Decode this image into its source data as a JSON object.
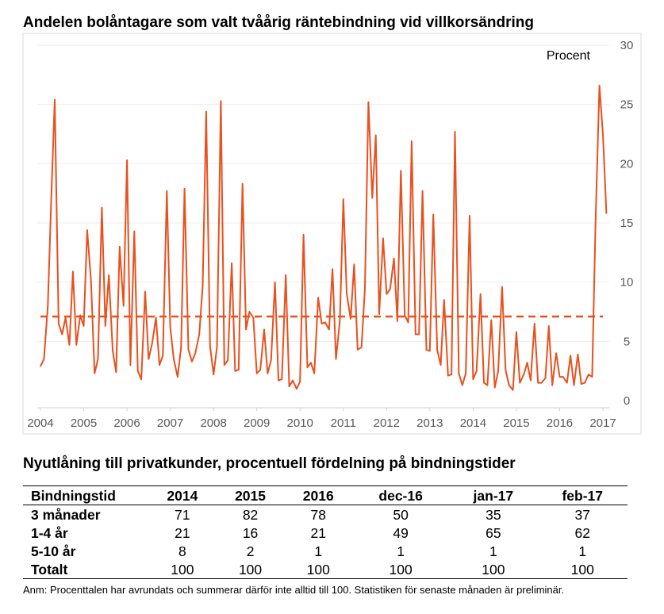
{
  "chart_data": {
    "type": "line",
    "title": "Andelen bolåntagare som valt tvåårig räntebindning vid villkorsändring",
    "ylabel": "Procent",
    "ylim": [
      0,
      30
    ],
    "yticks": [
      "0",
      "5",
      "10",
      "15",
      "20",
      "25",
      "30"
    ],
    "xlim": [
      2004,
      2017
    ],
    "xticks": [
      "2004",
      "2005",
      "2006",
      "2007",
      "2008",
      "2009",
      "2010",
      "2011",
      "2012",
      "2013",
      "2014",
      "2015",
      "2016",
      "2017"
    ],
    "grid": "horizontal",
    "color": "#E8501E",
    "series": [
      {
        "points": [
          [
            2004.0,
            2.9
          ],
          [
            2004.08,
            3.5
          ],
          [
            2004.17,
            8.0
          ],
          [
            2004.25,
            17.0
          ],
          [
            2004.33,
            25.4
          ],
          [
            2004.42,
            6.5
          ],
          [
            2004.5,
            5.6
          ],
          [
            2004.58,
            7.0
          ],
          [
            2004.67,
            4.7
          ],
          [
            2004.75,
            10.9
          ],
          [
            2004.83,
            4.7
          ],
          [
            2004.92,
            7.2
          ],
          [
            2005.0,
            6.3
          ],
          [
            2005.08,
            14.4
          ],
          [
            2005.17,
            10.0
          ],
          [
            2005.25,
            2.3
          ],
          [
            2005.33,
            3.5
          ],
          [
            2005.42,
            16.3
          ],
          [
            2005.5,
            6.3
          ],
          [
            2005.58,
            10.6
          ],
          [
            2005.67,
            4.2
          ],
          [
            2005.75,
            2.4
          ],
          [
            2005.83,
            13.0
          ],
          [
            2005.92,
            8.0
          ],
          [
            2006.0,
            20.3
          ],
          [
            2006.08,
            3.0
          ],
          [
            2006.17,
            14.3
          ],
          [
            2006.25,
            2.5
          ],
          [
            2006.33,
            1.8
          ],
          [
            2006.42,
            9.2
          ],
          [
            2006.5,
            3.5
          ],
          [
            2006.58,
            4.8
          ],
          [
            2006.67,
            7.0
          ],
          [
            2006.75,
            3.0
          ],
          [
            2006.83,
            3.8
          ],
          [
            2006.92,
            17.7
          ],
          [
            2007.0,
            6.2
          ],
          [
            2007.08,
            3.5
          ],
          [
            2007.17,
            2.0
          ],
          [
            2007.25,
            4.5
          ],
          [
            2007.33,
            17.9
          ],
          [
            2007.42,
            4.3
          ],
          [
            2007.5,
            3.3
          ],
          [
            2007.58,
            4.0
          ],
          [
            2007.67,
            5.6
          ],
          [
            2007.75,
            9.7
          ],
          [
            2007.83,
            24.4
          ],
          [
            2007.92,
            4.6
          ],
          [
            2008.0,
            2.2
          ],
          [
            2008.08,
            4.5
          ],
          [
            2008.17,
            25.3
          ],
          [
            2008.25,
            3.0
          ],
          [
            2008.33,
            3.4
          ],
          [
            2008.42,
            11.6
          ],
          [
            2008.5,
            2.5
          ],
          [
            2008.58,
            2.6
          ],
          [
            2008.67,
            18.3
          ],
          [
            2008.75,
            6.0
          ],
          [
            2008.83,
            7.5
          ],
          [
            2008.92,
            7.0
          ],
          [
            2009.0,
            2.3
          ],
          [
            2009.08,
            2.6
          ],
          [
            2009.17,
            6.0
          ],
          [
            2009.25,
            2.3
          ],
          [
            2009.33,
            3.4
          ],
          [
            2009.42,
            10.0
          ],
          [
            2009.5,
            1.7
          ],
          [
            2009.58,
            1.8
          ],
          [
            2009.67,
            10.6
          ],
          [
            2009.75,
            1.2
          ],
          [
            2009.83,
            1.7
          ],
          [
            2009.92,
            1.0
          ],
          [
            2010.0,
            1.6
          ],
          [
            2010.08,
            14.0
          ],
          [
            2010.17,
            2.8
          ],
          [
            2010.25,
            3.2
          ],
          [
            2010.33,
            2.3
          ],
          [
            2010.42,
            8.7
          ],
          [
            2010.5,
            6.5
          ],
          [
            2010.58,
            6.6
          ],
          [
            2010.67,
            6.0
          ],
          [
            2010.75,
            11.1
          ],
          [
            2010.83,
            3.5
          ],
          [
            2010.92,
            6.7
          ],
          [
            2011.0,
            17.0
          ],
          [
            2011.08,
            9.0
          ],
          [
            2011.17,
            6.9
          ],
          [
            2011.25,
            11.5
          ],
          [
            2011.33,
            4.3
          ],
          [
            2011.42,
            4.5
          ],
          [
            2011.5,
            9.5
          ],
          [
            2011.58,
            25.2
          ],
          [
            2011.67,
            17.1
          ],
          [
            2011.75,
            22.4
          ],
          [
            2011.83,
            7.3
          ],
          [
            2011.92,
            13.7
          ],
          [
            2012.0,
            9.0
          ],
          [
            2012.08,
            9.4
          ],
          [
            2012.17,
            12.0
          ],
          [
            2012.25,
            6.7
          ],
          [
            2012.33,
            19.4
          ],
          [
            2012.42,
            7.2
          ],
          [
            2012.5,
            6.6
          ],
          [
            2012.58,
            21.9
          ],
          [
            2012.67,
            5.6
          ],
          [
            2012.75,
            5.6
          ],
          [
            2012.83,
            17.7
          ],
          [
            2012.92,
            4.3
          ],
          [
            2013.0,
            4.2
          ],
          [
            2013.08,
            15.7
          ],
          [
            2013.17,
            4.3
          ],
          [
            2013.25,
            3.0
          ],
          [
            2013.33,
            8.5
          ],
          [
            2013.42,
            2.1
          ],
          [
            2013.5,
            2.2
          ],
          [
            2013.58,
            22.7
          ],
          [
            2013.67,
            2.3
          ],
          [
            2013.75,
            1.3
          ],
          [
            2013.83,
            2.3
          ],
          [
            2013.92,
            15.6
          ],
          [
            2014.0,
            1.8
          ],
          [
            2014.08,
            2.5
          ],
          [
            2014.17,
            9.0
          ],
          [
            2014.25,
            1.5
          ],
          [
            2014.33,
            1.3
          ],
          [
            2014.42,
            6.8
          ],
          [
            2014.5,
            1.1
          ],
          [
            2014.58,
            2.5
          ],
          [
            2014.67,
            9.6
          ],
          [
            2014.75,
            2.6
          ],
          [
            2014.83,
            1.3
          ],
          [
            2014.92,
            0.9
          ],
          [
            2015.0,
            5.8
          ],
          [
            2015.08,
            1.5
          ],
          [
            2015.17,
            2.2
          ],
          [
            2015.25,
            3.2
          ],
          [
            2015.33,
            1.7
          ],
          [
            2015.42,
            6.5
          ],
          [
            2015.5,
            1.5
          ],
          [
            2015.58,
            1.5
          ],
          [
            2015.67,
            1.9
          ],
          [
            2015.75,
            6.3
          ],
          [
            2015.83,
            1.3
          ],
          [
            2015.92,
            4.0
          ],
          [
            2016.0,
            2.0
          ],
          [
            2016.08,
            2.0
          ],
          [
            2016.17,
            1.5
          ],
          [
            2016.25,
            3.8
          ],
          [
            2016.33,
            1.3
          ],
          [
            2016.42,
            3.9
          ],
          [
            2016.5,
            1.4
          ],
          [
            2016.58,
            1.5
          ],
          [
            2016.67,
            2.2
          ],
          [
            2016.75,
            2.0
          ],
          [
            2016.83,
            15.0
          ],
          [
            2016.92,
            26.6
          ],
          [
            2017.0,
            22.5
          ],
          [
            2017.08,
            15.8
          ]
        ]
      },
      {
        "style": "dashed",
        "points": [
          [
            2004.0,
            7.1
          ],
          [
            2017.0,
            7.1
          ]
        ]
      }
    ]
  },
  "table": {
    "title": "Nyutlåning till privatkunder, procentuell fördelning på bindningstider",
    "headers": [
      "Bindningstid",
      "2014",
      "2015",
      "2016",
      "dec-16",
      "jan-17",
      "feb-17"
    ],
    "rows": [
      [
        "3 månader",
        "71",
        "82",
        "78",
        "50",
        "35",
        "37"
      ],
      [
        "1-4 år",
        "21",
        "16",
        "21",
        "49",
        "65",
        "62"
      ],
      [
        "5-10 år",
        "8",
        "2",
        "1",
        "1",
        "1",
        "1"
      ],
      [
        "Totalt",
        "100",
        "100",
        "100",
        "100",
        "100",
        "100"
      ]
    ]
  },
  "note": "Anm: Procenttalen har avrundats och summerar därför inte alltid till 100. Statistiken för senaste månaden är preliminär."
}
